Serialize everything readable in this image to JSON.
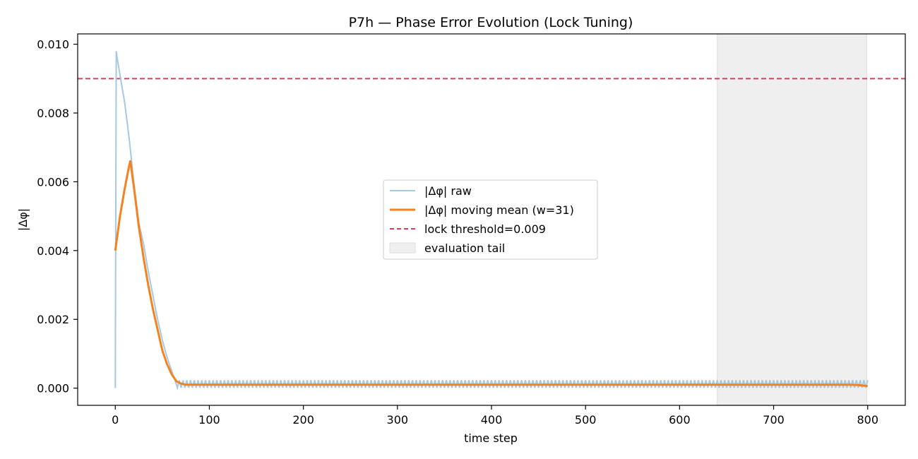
{
  "chart_data": {
    "type": "line",
    "title": "P7h — Phase Error Evolution (Lock Tuning)",
    "xlabel": "time step",
    "ylabel": "|Δφ|",
    "xlim": [
      -40,
      840
    ],
    "ylim": [
      -0.0005,
      0.0103
    ],
    "xticks": [
      0,
      100,
      200,
      300,
      400,
      500,
      600,
      700,
      800
    ],
    "xtick_labels": [
      "0",
      "100",
      "200",
      "300",
      "400",
      "500",
      "600",
      "700",
      "800"
    ],
    "yticks": [
      0.0,
      0.002,
      0.004,
      0.006,
      0.008,
      0.01
    ],
    "ytick_labels": [
      "0.000",
      "0.002",
      "0.004",
      "0.006",
      "0.008",
      "0.010"
    ],
    "grid": false,
    "legend_position": "center",
    "series": [
      {
        "name": "|Δφ| raw",
        "color": "#a6c8e0",
        "style": "solid",
        "x": [
          0,
          1,
          2,
          5,
          10,
          15,
          20,
          25,
          30,
          35,
          40,
          45,
          50,
          55,
          60,
          65,
          70,
          75,
          80,
          90,
          100,
          150,
          200,
          300,
          400,
          500,
          600,
          700,
          800
        ],
        "y": [
          0.0,
          0.0098,
          0.0096,
          0.0091,
          0.0083,
          0.0072,
          0.0059,
          0.0048,
          0.0042,
          0.0034,
          0.0027,
          0.002,
          0.0014,
          0.0009,
          0.0005,
          0.0001,
          0.0002,
          0.0001,
          0.0002,
          0.0001,
          0.0002,
          0.0001,
          0.0002,
          0.0001,
          0.0002,
          0.0001,
          0.0002,
          0.0001,
          0.0002
        ],
        "oscillation": {
          "start": 66,
          "end": 800,
          "low": 1e-05,
          "high": 0.00023,
          "period": 4
        }
      },
      {
        "name": "|Δφ| moving mean (w=31)",
        "color": "#f5821f",
        "style": "solid",
        "x": [
          0,
          5,
          10,
          15,
          16,
          20,
          25,
          30,
          35,
          40,
          45,
          50,
          55,
          60,
          65,
          70,
          75,
          80,
          90,
          100,
          200,
          300,
          400,
          500,
          600,
          700,
          780,
          790,
          800
        ],
        "y": [
          0.004,
          0.005,
          0.0058,
          0.0065,
          0.0066,
          0.0058,
          0.0047,
          0.0038,
          0.003,
          0.0023,
          0.0017,
          0.0011,
          0.0007,
          0.0004,
          0.0002,
          0.00013,
          0.0001,
          0.0001,
          0.0001,
          0.0001,
          0.0001,
          0.0001,
          0.0001,
          0.0001,
          0.0001,
          0.0001,
          0.0001,
          9e-05,
          6e-05
        ]
      }
    ],
    "threshold": {
      "name": "lock threshold=0.009",
      "value": 0.009,
      "color": "#dc3c5a",
      "style": "dashed"
    },
    "shaded_region": {
      "name": "evaluation tail",
      "x_start": 640,
      "x_end": 799,
      "color": "#e8e8e8"
    }
  }
}
